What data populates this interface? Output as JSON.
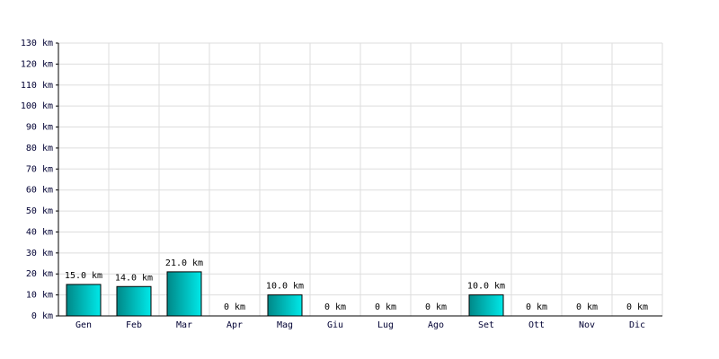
{
  "chart_data": {
    "type": "bar",
    "categories": [
      "Gen",
      "Feb",
      "Mar",
      "Apr",
      "Mag",
      "Giu",
      "Lug",
      "Ago",
      "Set",
      "Ott",
      "Nov",
      "Dic"
    ],
    "values": [
      15,
      14,
      21,
      0,
      10,
      0,
      0,
      0,
      10,
      0,
      0,
      0
    ],
    "value_labels": [
      "15.0 km",
      "14.0 km",
      "21.0 km",
      "0 km",
      "10.0 km",
      "0 km",
      "0 km",
      "0 km",
      "10.0 km",
      "0 km",
      "0 km",
      "0 km"
    ],
    "color": "#00e8e8",
    "ylim": [
      0,
      130
    ],
    "yticks": [
      {
        "value": 0,
        "label": "0 km"
      },
      {
        "value": 10,
        "label": "10 km"
      },
      {
        "value": 20,
        "label": "20 km"
      },
      {
        "value": 30,
        "label": "30 km"
      },
      {
        "value": 40,
        "label": "40 km"
      },
      {
        "value": 50,
        "label": "50 km"
      },
      {
        "value": 60,
        "label": "60 km"
      },
      {
        "value": 70,
        "label": "70 km"
      },
      {
        "value": 80,
        "label": "80 km"
      },
      {
        "value": 90,
        "label": "90 km"
      },
      {
        "value": 100,
        "label": "100 km"
      },
      {
        "value": 110,
        "label": "110 km"
      },
      {
        "value": 120,
        "label": "120 km"
      },
      {
        "value": 130,
        "label": "130 km"
      }
    ],
    "grid": true
  }
}
